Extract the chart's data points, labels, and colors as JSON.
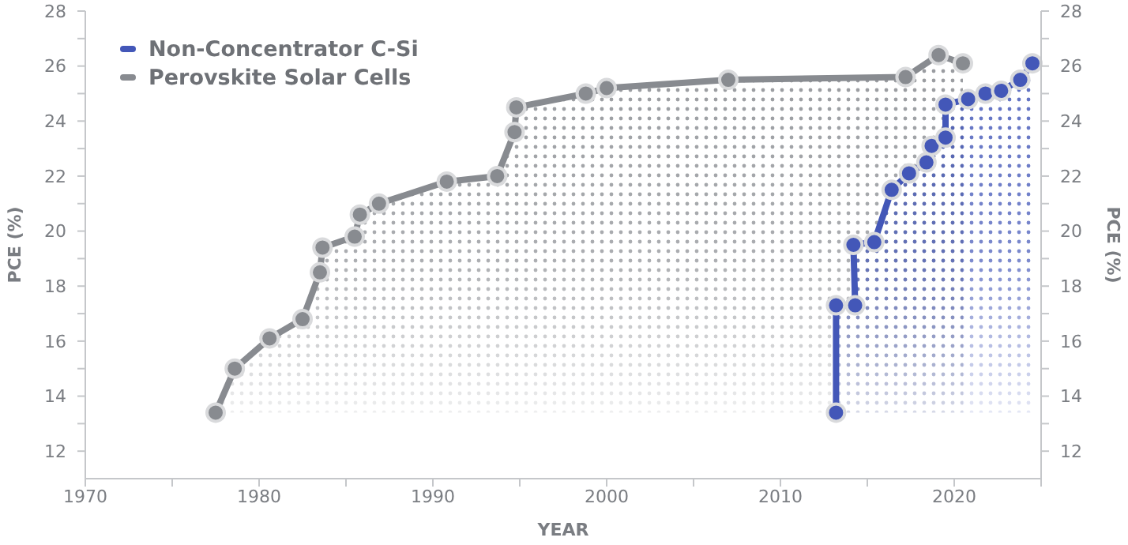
{
  "chart_data": {
    "type": "area",
    "xlabel": "YEAR",
    "ylabel": "PCE (%)",
    "y2label": "PCE (%)",
    "xlim": [
      1970,
      2025
    ],
    "xticks": [
      1970,
      {
        "value": 1975,
        "label": null
      },
      1980,
      {
        "value": 1985,
        "label": null
      },
      1990,
      {
        "value": 1995,
        "label": null
      },
      2000,
      {
        "value": 2005,
        "label": null
      },
      2010,
      {
        "value": 2015,
        "label": null
      },
      2020,
      {
        "value": 2025,
        "label": null
      }
    ],
    "ylim": [
      11,
      28
    ],
    "yticks": [
      12,
      {
        "value": 13,
        "label": null
      },
      14,
      {
        "value": 15,
        "label": null
      },
      16,
      {
        "value": 17,
        "label": null
      },
      18,
      {
        "value": 19,
        "label": null
      },
      20,
      {
        "value": 21,
        "label": null
      },
      22,
      {
        "value": 23,
        "label": null
      },
      24,
      {
        "value": 25,
        "label": null
      },
      26,
      {
        "value": 27,
        "label": null
      },
      28
    ],
    "y2lim": [
      11,
      28
    ],
    "y2ticks": [
      12,
      {
        "value": 13,
        "label": null
      },
      14,
      {
        "value": 15,
        "label": null
      },
      16,
      {
        "value": 17,
        "label": null
      },
      18,
      {
        "value": 19,
        "label": null
      },
      20,
      {
        "value": 21,
        "label": null
      },
      22,
      {
        "value": 23,
        "label": null
      },
      24,
      {
        "value": 25,
        "label": null
      },
      26,
      {
        "value": 27,
        "label": null
      },
      28
    ],
    "legend": "top left",
    "marker": "circle",
    "grid": false,
    "series": [
      {
        "name": "Perovskite Solar Cells",
        "color": "#888b90",
        "x": [
          1977.5,
          1978.6,
          1980.6,
          1982.5,
          1983.5,
          1983.65,
          1985.5,
          1985.8,
          1986.9,
          1990.8,
          1993.7,
          1994.7,
          1994.8,
          1998.8,
          2000.0,
          2007.0,
          2017.2,
          2019.1,
          2020.5
        ],
        "values": [
          13.4,
          15.0,
          16.1,
          16.8,
          18.5,
          19.4,
          19.8,
          20.6,
          21.0,
          21.8,
          22.0,
          23.6,
          24.5,
          25.0,
          25.2,
          25.5,
          25.6,
          26.4,
          26.1
        ]
      },
      {
        "name": "Non-Concentrator C-Si",
        "color": "#4357b8",
        "x": [
          2013.2,
          2013.2,
          2014.3,
          2014.2,
          2015.4,
          2016.4,
          2017.4,
          2018.4,
          2018.7,
          2019.5,
          2019.5,
          2020.8,
          2021.8,
          2022.7,
          2023.8,
          2024.5
        ],
        "values": [
          13.4,
          17.3,
          17.3,
          19.5,
          19.6,
          21.5,
          22.1,
          22.5,
          23.1,
          23.4,
          24.6,
          24.8,
          25.0,
          25.1,
          25.5,
          26.1
        ]
      }
    ]
  }
}
